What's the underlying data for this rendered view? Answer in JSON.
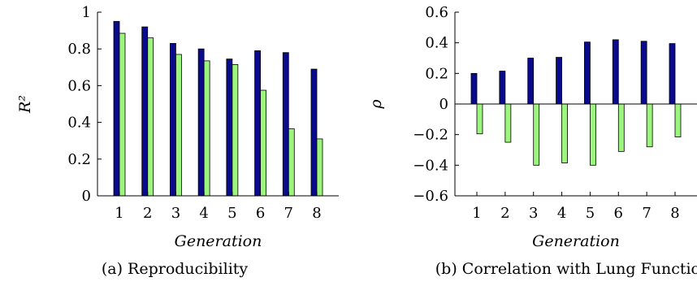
{
  "colors": {
    "series1": "#0a0a8c",
    "series2": "#9cf57c",
    "edge": "#000000"
  },
  "chart_data": [
    {
      "type": "bar",
      "title": "",
      "caption": "(a) Reproducibility",
      "xlabel": "Generation",
      "ylabel": "R²",
      "categories": [
        "1",
        "2",
        "3",
        "4",
        "5",
        "6",
        "7",
        "8"
      ],
      "ylim": [
        0,
        1
      ],
      "yticks": [
        0,
        0.2,
        0.4,
        0.6,
        0.8,
        1
      ],
      "ytick_labels": [
        "0",
        "0.2",
        "0.4",
        "0.6",
        "0.8",
        "1"
      ],
      "grid": false,
      "series": [
        {
          "values": [
            0.95,
            0.92,
            0.83,
            0.8,
            0.745,
            0.79,
            0.78,
            0.69
          ]
        },
        {
          "values": [
            0.885,
            0.86,
            0.77,
            0.735,
            0.715,
            0.575,
            0.365,
            0.31
          ]
        }
      ]
    },
    {
      "type": "bar",
      "title": "",
      "caption": "(b) Correlation with Lung Function",
      "xlabel": "Generation",
      "ylabel": "ρ",
      "categories": [
        "1",
        "2",
        "3",
        "4",
        "5",
        "6",
        "7",
        "8"
      ],
      "ylim": [
        -0.6,
        0.6
      ],
      "yticks": [
        -0.6,
        -0.4,
        -0.2,
        0,
        0.2,
        0.4,
        0.6
      ],
      "ytick_labels": [
        "−0.6",
        "−0.4",
        "−0.2",
        "0",
        "0.2",
        "0.4",
        "0.6"
      ],
      "grid": false,
      "series": [
        {
          "values": [
            0.2,
            0.215,
            0.3,
            0.305,
            0.405,
            0.42,
            0.41,
            0.395
          ]
        },
        {
          "values": [
            -0.195,
            -0.25,
            -0.4,
            -0.385,
            -0.4,
            -0.31,
            -0.28,
            -0.215
          ]
        }
      ]
    }
  ]
}
